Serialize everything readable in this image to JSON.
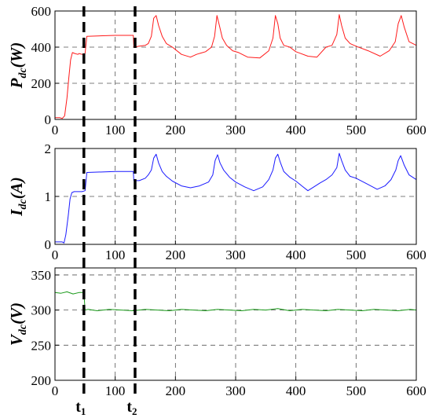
{
  "chart_data": [
    {
      "type": "line",
      "ylabel": {
        "main": "P",
        "sub": "dc",
        "unit": "(W)"
      },
      "xlim": [
        0,
        600
      ],
      "ylim": [
        0,
        600
      ],
      "xticks": [
        0,
        100,
        200,
        300,
        400,
        500,
        600
      ],
      "yticks": [
        0,
        200,
        400,
        600
      ],
      "grid": true,
      "colors": {
        "series": "#ff1a1a"
      },
      "series": [
        {
          "x": [
            0,
            8,
            12,
            16,
            20,
            23,
            26,
            29,
            33,
            38,
            40,
            45,
            50,
            53,
            100,
            130,
            131,
            140,
            150,
            155,
            160,
            164,
            168,
            172,
            178,
            185,
            195,
            210,
            225,
            235,
            250,
            260,
            265,
            269,
            273,
            278,
            285,
            295,
            305,
            320,
            340,
            355,
            362,
            366,
            370,
            374,
            380,
            390,
            400,
            420,
            435,
            450,
            460,
            468,
            472,
            476,
            482,
            490,
            500,
            520,
            540,
            555,
            565,
            570,
            575,
            580,
            588,
            600
          ],
          "y": [
            10,
            10,
            5,
            20,
            120,
            230,
            330,
            370,
            365,
            360,
            365,
            360,
            365,
            460,
            465,
            465,
            400,
            405,
            410,
            420,
            460,
            560,
            575,
            520,
            460,
            420,
            400,
            360,
            345,
            360,
            375,
            400,
            460,
            575,
            520,
            450,
            410,
            380,
            370,
            345,
            340,
            380,
            450,
            575,
            530,
            450,
            410,
            400,
            375,
            350,
            345,
            400,
            410,
            470,
            580,
            520,
            450,
            420,
            405,
            380,
            350,
            380,
            430,
            530,
            575,
            510,
            430,
            410
          ]
        }
      ]
    },
    {
      "type": "line",
      "ylabel": {
        "main": "I",
        "sub": "dc",
        "unit": "(A)"
      },
      "xlim": [
        0,
        600
      ],
      "ylim": [
        0,
        2
      ],
      "xticks": [
        0,
        100,
        200,
        300,
        400,
        500,
        600
      ],
      "yticks": [
        0,
        1,
        2
      ],
      "grid": true,
      "colors": {
        "series": "#1a1aff"
      },
      "series": [
        {
          "x": [
            0,
            12,
            15,
            18,
            22,
            25,
            28,
            32,
            38,
            45,
            50,
            53,
            100,
            130,
            131,
            140,
            150,
            155,
            160,
            164,
            168,
            172,
            178,
            185,
            195,
            210,
            225,
            240,
            255,
            262,
            266,
            270,
            274,
            280,
            290,
            300,
            315,
            330,
            345,
            355,
            362,
            366,
            370,
            374,
            380,
            390,
            400,
            410,
            420,
            430,
            440,
            450,
            460,
            468,
            472,
            476,
            482,
            490,
            500,
            520,
            535,
            548,
            558,
            566,
            570,
            574,
            580,
            588,
            600
          ],
          "y": [
            0.05,
            0.05,
            0.03,
            0.2,
            0.6,
            0.95,
            1.08,
            1.1,
            1.1,
            1.1,
            1.12,
            1.5,
            1.52,
            1.52,
            1.33,
            1.33,
            1.38,
            1.45,
            1.55,
            1.8,
            1.88,
            1.7,
            1.52,
            1.42,
            1.32,
            1.22,
            1.18,
            1.22,
            1.3,
            1.45,
            1.75,
            1.87,
            1.7,
            1.55,
            1.4,
            1.3,
            1.2,
            1.12,
            1.2,
            1.35,
            1.55,
            1.8,
            1.88,
            1.72,
            1.52,
            1.4,
            1.32,
            1.22,
            1.12,
            1.2,
            1.28,
            1.35,
            1.45,
            1.6,
            1.9,
            1.75,
            1.55,
            1.42,
            1.38,
            1.25,
            1.15,
            1.22,
            1.35,
            1.55,
            1.75,
            1.85,
            1.65,
            1.45,
            1.35
          ]
        }
      ]
    },
    {
      "type": "line",
      "ylabel": {
        "main": "V",
        "sub": "dc",
        "unit": "(V)"
      },
      "xlim": [
        0,
        600
      ],
      "ylim": [
        200,
        360
      ],
      "xticks": [
        0,
        100,
        200,
        300,
        400,
        500,
        600
      ],
      "yticks": [
        200,
        250,
        300,
        350
      ],
      "grid": true,
      "colors": {
        "series": "#1a9a1a"
      },
      "series": [
        {
          "x": [
            0,
            10,
            20,
            30,
            40,
            48,
            50,
            55,
            70,
            90,
            110,
            130,
            150,
            170,
            190,
            210,
            230,
            250,
            270,
            290,
            310,
            330,
            350,
            370,
            390,
            410,
            430,
            450,
            470,
            490,
            510,
            530,
            550,
            570,
            590,
            600
          ],
          "y": [
            325,
            324,
            326,
            323,
            325,
            325,
            300,
            301,
            299,
            301,
            300,
            299,
            301,
            300,
            299,
            301,
            300,
            299,
            301,
            300,
            299,
            301,
            300,
            302,
            299,
            301,
            300,
            299,
            301,
            300,
            299,
            301,
            300,
            299,
            301,
            300
          ]
        }
      ]
    }
  ],
  "events": [
    {
      "x": 48,
      "label": "t",
      "sub": "1"
    },
    {
      "x": 133,
      "label": "t",
      "sub": "2"
    }
  ],
  "colors": {
    "frame": "#000000",
    "grid": "#555555",
    "event_line": "#000000"
  }
}
